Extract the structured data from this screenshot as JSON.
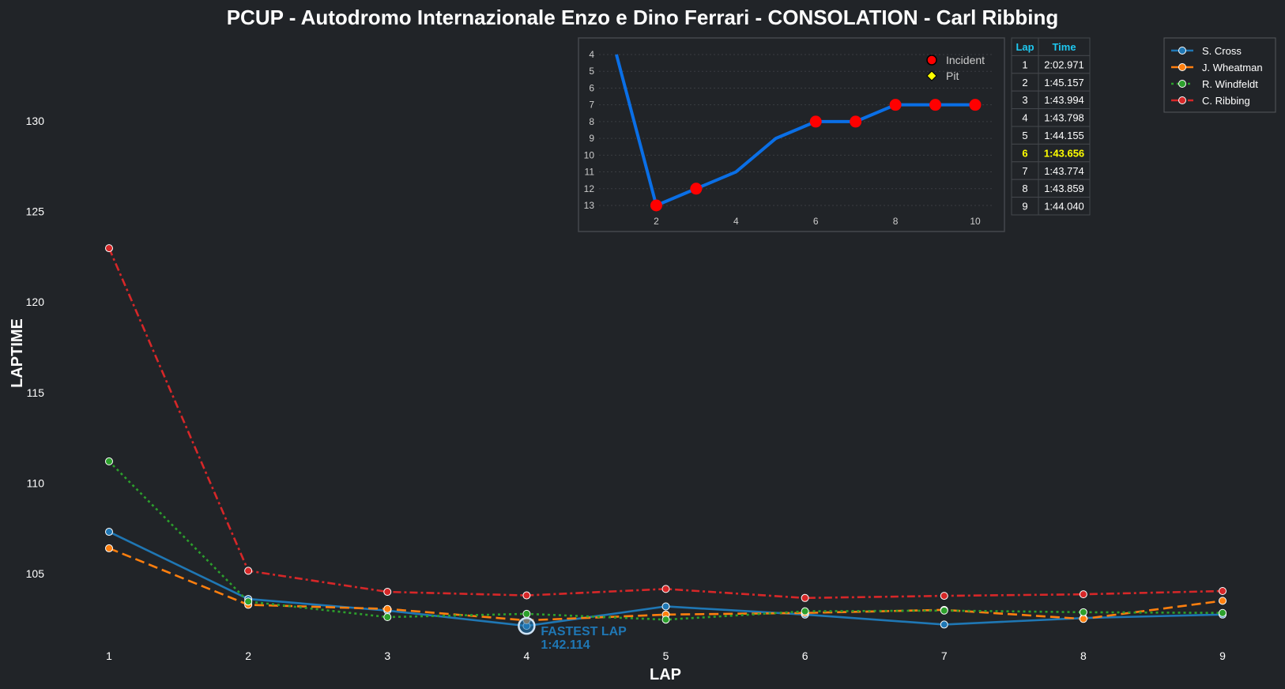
{
  "chart_data": [
    {
      "type": "line",
      "title": "PCUP - Autodromo Internazionale Enzo e Dino Ferrari - CONSOLATION - Carl Ribbing",
      "xlabel": "LAP",
      "ylabel": "LAPTIME",
      "x": [
        1,
        2,
        3,
        4,
        5,
        6,
        7,
        8,
        9
      ],
      "x_ticks": [
        "1",
        "2",
        "3",
        "4",
        "5",
        "6",
        "7",
        "8",
        "9"
      ],
      "y_ticks": [
        "105",
        "110",
        "115",
        "120",
        "125",
        "130"
      ],
      "y_tick_values": [
        105,
        110,
        115,
        120,
        125,
        130
      ],
      "ylim": [
        100.8,
        134.5
      ],
      "grid": false,
      "legend_position": "top-right",
      "series": [
        {
          "name": "S. Cross",
          "color": "#1f77b4",
          "style": "solid",
          "values": [
            107.31,
            103.6,
            102.96,
            102.114,
            103.19,
            102.74,
            102.19,
            102.55,
            102.74
          ]
        },
        {
          "name": "J. Wheatman",
          "color": "#ff7f0e",
          "style": "dashed",
          "values": [
            106.4,
            103.28,
            103.05,
            102.42,
            102.74,
            102.83,
            103.0,
            102.5,
            103.5
          ]
        },
        {
          "name": "R. Windfeldt",
          "color": "#2ca02c",
          "style": "dotted",
          "values": [
            111.2,
            103.46,
            102.6,
            102.78,
            102.46,
            102.92,
            102.96,
            102.87,
            102.83
          ]
        },
        {
          "name": "C. Ribbing",
          "color": "#d62728",
          "style": "dashdot",
          "values": [
            122.971,
            105.157,
            103.994,
            103.798,
            104.155,
            103.656,
            103.774,
            103.859,
            104.04
          ]
        }
      ],
      "annotation": {
        "line1": "FASTEST LAP",
        "line2": "1:42.114",
        "lap": 4,
        "value": 102.114,
        "series": "S. Cross"
      }
    },
    {
      "type": "line",
      "title": "",
      "x": [
        1,
        2,
        3,
        4,
        5,
        6,
        7,
        8,
        9,
        10
      ],
      "values": [
        4,
        13,
        12,
        11,
        9,
        8,
        8,
        7,
        7,
        7
      ],
      "incidents": [
        2,
        3,
        6,
        7,
        8,
        9,
        10
      ],
      "pits": [],
      "x_ticks": [
        "2",
        "4",
        "6",
        "8",
        "10"
      ],
      "x_tick_values": [
        2,
        4,
        6,
        8,
        10
      ],
      "y_ticks": [
        "4",
        "5",
        "6",
        "7",
        "8",
        "9",
        "10",
        "11",
        "12",
        "13"
      ],
      "y_tick_values": [
        4,
        5,
        6,
        7,
        8,
        9,
        10,
        11,
        12,
        13
      ],
      "y_inverted": true,
      "line_color": "#0a6fe6",
      "legend": [
        {
          "label": "Incident",
          "color": "#ff0000"
        },
        {
          "label": "Pit",
          "color": "#ffff00"
        }
      ]
    },
    {
      "type": "table",
      "headers": [
        "Lap",
        "Time"
      ],
      "rows": [
        [
          "1",
          "2:02.971"
        ],
        [
          "2",
          "1:45.157"
        ],
        [
          "3",
          "1:43.994"
        ],
        [
          "4",
          "1:43.798"
        ],
        [
          "5",
          "1:44.155"
        ],
        [
          "6",
          "1:43.656"
        ],
        [
          "7",
          "1:43.774"
        ],
        [
          "8",
          "1:43.859"
        ],
        [
          "9",
          "1:44.040"
        ]
      ],
      "best_row": 5,
      "header_color": "#1ec8f0",
      "best_color": "#ffff00"
    }
  ]
}
